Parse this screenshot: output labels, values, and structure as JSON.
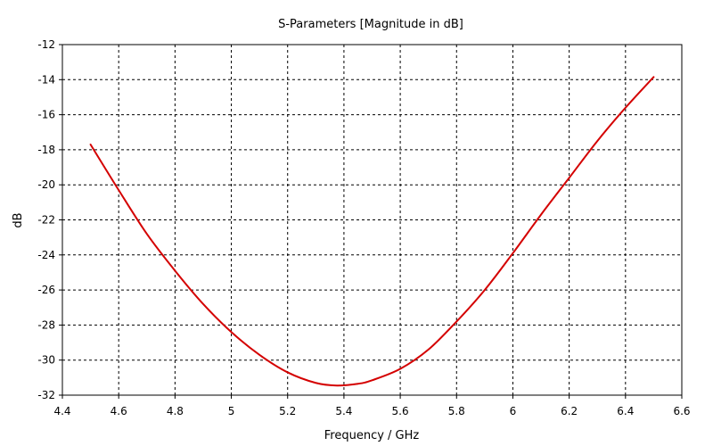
{
  "chart_data": {
    "type": "line",
    "title": "S-Parameters [Magnitude in dB]",
    "xlabel": "Frequency / GHz",
    "ylabel": "dB",
    "xlim": [
      4.4,
      6.6
    ],
    "ylim": [
      -32,
      -12
    ],
    "xticks": [
      "4.4",
      "4.6",
      "4.8",
      "5",
      "5.2",
      "5.4",
      "5.6",
      "5.8",
      "6",
      "6.2",
      "6.4",
      "6.6"
    ],
    "yticks": [
      "-12",
      "-14",
      "-16",
      "-18",
      "-20",
      "-22",
      "-24",
      "-26",
      "-28",
      "-30",
      "-32"
    ],
    "grid": true,
    "series": [
      {
        "color": "#d40000",
        "x": [
          4.5,
          4.6,
          4.7,
          4.8,
          4.9,
          5.0,
          5.1,
          5.2,
          5.3,
          5.375,
          5.45,
          5.5,
          5.6,
          5.7,
          5.8,
          5.9,
          6.0,
          6.1,
          6.2,
          6.3,
          6.4,
          6.5
        ],
        "y": [
          -17.7,
          -20.3,
          -22.8,
          -24.9,
          -26.8,
          -28.4,
          -29.7,
          -30.7,
          -31.3,
          -31.45,
          -31.35,
          -31.15,
          -30.5,
          -29.4,
          -27.8,
          -26.0,
          -23.9,
          -21.7,
          -19.6,
          -17.5,
          -15.6,
          -13.85
        ]
      }
    ]
  }
}
